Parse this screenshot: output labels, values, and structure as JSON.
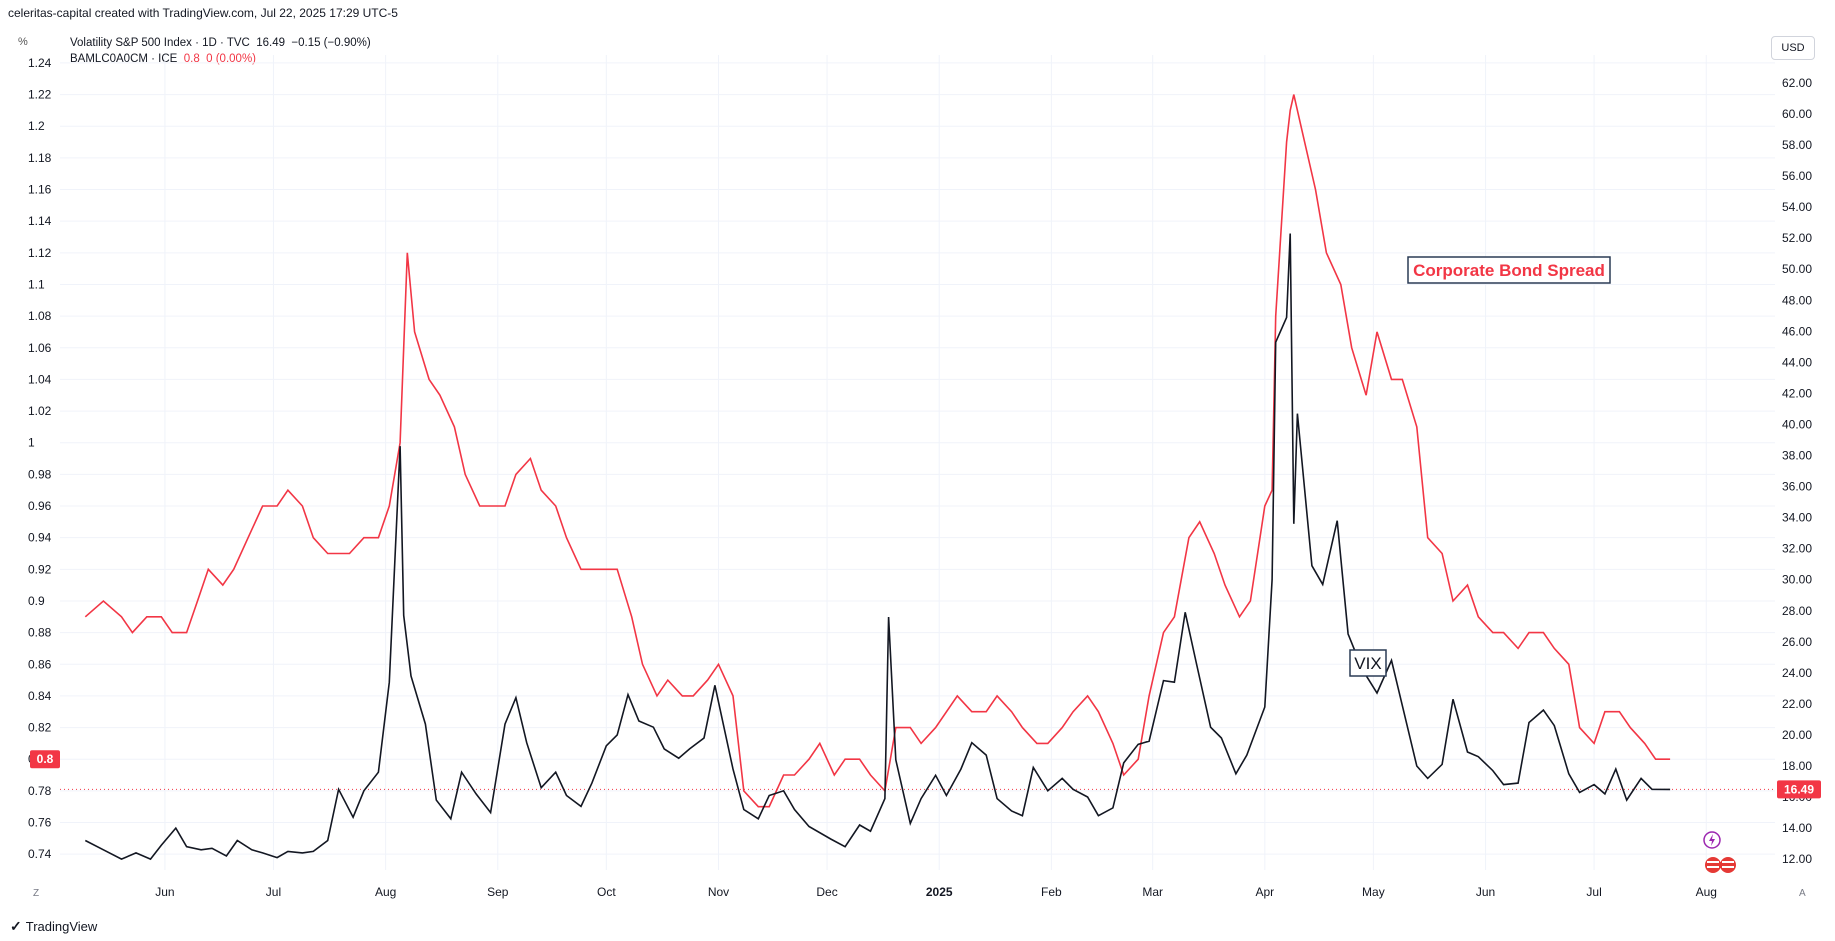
{
  "header": {
    "attribution": "celeritas-capital created with TradingView.com, Jul 22, 2025 17:29 UTC-5"
  },
  "toolbar": {
    "scale_label": "%",
    "currency_label": "USD"
  },
  "legend": {
    "vix": {
      "name": "Volatility S&P 500 Index · 1D · TVC",
      "value": "16.49",
      "change": "−0.15 (−0.90%)"
    },
    "bam": {
      "name": "BAMLC0A0CM · ICE",
      "value": "0.8",
      "change": "0 (0.00%)"
    }
  },
  "footer": {
    "brand": "TradingView",
    "left_corner": "Z",
    "right_corner": "A"
  },
  "colors": {
    "vix": "#131722",
    "spread": "#f23645",
    "grid": "#f0f3fa",
    "annotation_border": "#2a3b55"
  },
  "icons": [
    "tradingview-logo-icon",
    "lightning-icon",
    "us-flag-icon"
  ],
  "chart_data": {
    "type": "line",
    "x_ticks": [
      "Jun",
      "Jul",
      "Aug",
      "Sep",
      "Oct",
      "Nov",
      "Dec",
      "2025",
      "Feb",
      "Mar",
      "Apr",
      "May",
      "Jun",
      "Jul",
      "Aug"
    ],
    "left_axis": {
      "range": [
        0.73,
        1.245
      ],
      "ticks": [
        "0.74",
        "0.76",
        "0.78",
        "0.8",
        "0.82",
        "0.84",
        "0.86",
        "0.88",
        "0.9",
        "0.92",
        "0.94",
        "0.96",
        "0.98",
        "1",
        "1.02",
        "1.04",
        "1.06",
        "1.08",
        "1.1",
        "1.12",
        "1.14",
        "1.16",
        "1.18",
        "1.2",
        "1.22",
        "1.24"
      ],
      "last_value_label": "0.8"
    },
    "right_axis": {
      "range": [
        11.3,
        63.8
      ],
      "ticks": [
        "12.00",
        "14.00",
        "16.00",
        "18.00",
        "20.00",
        "22.00",
        "24.00",
        "26.00",
        "28.00",
        "30.00",
        "32.00",
        "34.00",
        "36.00",
        "38.00",
        "40.00",
        "42.00",
        "44.00",
        "46.00",
        "48.00",
        "50.00",
        "52.00",
        "54.00",
        "56.00",
        "58.00",
        "60.00",
        "62.00"
      ],
      "last_value_label": "16.49"
    },
    "annotations": [
      "Corporate Bond Spread",
      "VIX"
    ],
    "series": [
      {
        "name": "BAMLC0A0CM",
        "axis": "left",
        "points": [
          [
            "2024-05-10",
            0.89
          ],
          [
            "2024-05-15",
            0.9
          ],
          [
            "2024-05-20",
            0.89
          ],
          [
            "2024-05-23",
            0.88
          ],
          [
            "2024-05-27",
            0.89
          ],
          [
            "2024-05-31",
            0.89
          ],
          [
            "2024-06-03",
            0.88
          ],
          [
            "2024-06-07",
            0.88
          ],
          [
            "2024-06-10",
            0.9
          ],
          [
            "2024-06-13",
            0.92
          ],
          [
            "2024-06-17",
            0.91
          ],
          [
            "2024-06-20",
            0.92
          ],
          [
            "2024-06-24",
            0.94
          ],
          [
            "2024-06-28",
            0.96
          ],
          [
            "2024-07-02",
            0.96
          ],
          [
            "2024-07-05",
            0.97
          ],
          [
            "2024-07-09",
            0.96
          ],
          [
            "2024-07-12",
            0.94
          ],
          [
            "2024-07-16",
            0.93
          ],
          [
            "2024-07-22",
            0.93
          ],
          [
            "2024-07-26",
            0.94
          ],
          [
            "2024-07-30",
            0.94
          ],
          [
            "2024-08-02",
            0.96
          ],
          [
            "2024-08-05",
            1.0
          ],
          [
            "2024-08-07",
            1.12
          ],
          [
            "2024-08-09",
            1.07
          ],
          [
            "2024-08-13",
            1.04
          ],
          [
            "2024-08-16",
            1.03
          ],
          [
            "2024-08-20",
            1.01
          ],
          [
            "2024-08-23",
            0.98
          ],
          [
            "2024-08-27",
            0.96
          ],
          [
            "2024-08-30",
            0.96
          ],
          [
            "2024-09-03",
            0.96
          ],
          [
            "2024-09-06",
            0.98
          ],
          [
            "2024-09-10",
            0.99
          ],
          [
            "2024-09-13",
            0.97
          ],
          [
            "2024-09-17",
            0.96
          ],
          [
            "2024-09-20",
            0.94
          ],
          [
            "2024-09-24",
            0.92
          ],
          [
            "2024-09-30",
            0.92
          ],
          [
            "2024-10-04",
            0.92
          ],
          [
            "2024-10-08",
            0.89
          ],
          [
            "2024-10-11",
            0.86
          ],
          [
            "2024-10-15",
            0.84
          ],
          [
            "2024-10-18",
            0.85
          ],
          [
            "2024-10-22",
            0.84
          ],
          [
            "2024-10-25",
            0.84
          ],
          [
            "2024-10-29",
            0.85
          ],
          [
            "2024-11-01",
            0.86
          ],
          [
            "2024-11-05",
            0.84
          ],
          [
            "2024-11-08",
            0.78
          ],
          [
            "2024-11-12",
            0.77
          ],
          [
            "2024-11-15",
            0.77
          ],
          [
            "2024-11-19",
            0.79
          ],
          [
            "2024-11-22",
            0.79
          ],
          [
            "2024-11-26",
            0.8
          ],
          [
            "2024-11-29",
            0.81
          ],
          [
            "2024-12-03",
            0.79
          ],
          [
            "2024-12-06",
            0.8
          ],
          [
            "2024-12-10",
            0.8
          ],
          [
            "2024-12-13",
            0.79
          ],
          [
            "2024-12-17",
            0.78
          ],
          [
            "2024-12-20",
            0.82
          ],
          [
            "2024-12-24",
            0.82
          ],
          [
            "2024-12-27",
            0.81
          ],
          [
            "2024-12-31",
            0.82
          ],
          [
            "2025-01-06",
            0.84
          ],
          [
            "2025-01-10",
            0.83
          ],
          [
            "2025-01-14",
            0.83
          ],
          [
            "2025-01-17",
            0.84
          ],
          [
            "2025-01-21",
            0.83
          ],
          [
            "2025-01-24",
            0.82
          ],
          [
            "2025-01-28",
            0.81
          ],
          [
            "2025-01-31",
            0.81
          ],
          [
            "2025-02-04",
            0.82
          ],
          [
            "2025-02-07",
            0.83
          ],
          [
            "2025-02-11",
            0.84
          ],
          [
            "2025-02-14",
            0.83
          ],
          [
            "2025-02-18",
            0.81
          ],
          [
            "2025-02-21",
            0.79
          ],
          [
            "2025-02-25",
            0.8
          ],
          [
            "2025-02-28",
            0.84
          ],
          [
            "2025-03-04",
            0.88
          ],
          [
            "2025-03-07",
            0.89
          ],
          [
            "2025-03-11",
            0.94
          ],
          [
            "2025-03-14",
            0.95
          ],
          [
            "2025-03-18",
            0.93
          ],
          [
            "2025-03-21",
            0.91
          ],
          [
            "2025-03-25",
            0.89
          ],
          [
            "2025-03-28",
            0.9
          ],
          [
            "2025-04-01",
            0.96
          ],
          [
            "2025-04-03",
            0.97
          ],
          [
            "2025-04-04",
            1.08
          ],
          [
            "2025-04-07",
            1.19
          ],
          [
            "2025-04-08",
            1.21
          ],
          [
            "2025-04-09",
            1.22
          ],
          [
            "2025-04-11",
            1.2
          ],
          [
            "2025-04-15",
            1.16
          ],
          [
            "2025-04-18",
            1.12
          ],
          [
            "2025-04-22",
            1.1
          ],
          [
            "2025-04-25",
            1.06
          ],
          [
            "2025-04-29",
            1.03
          ],
          [
            "2025-05-02",
            1.07
          ],
          [
            "2025-05-06",
            1.04
          ],
          [
            "2025-05-09",
            1.04
          ],
          [
            "2025-05-13",
            1.01
          ],
          [
            "2025-05-16",
            0.94
          ],
          [
            "2025-05-20",
            0.93
          ],
          [
            "2025-05-23",
            0.9
          ],
          [
            "2025-05-27",
            0.91
          ],
          [
            "2025-05-30",
            0.89
          ],
          [
            "2025-06-03",
            0.88
          ],
          [
            "2025-06-06",
            0.88
          ],
          [
            "2025-06-10",
            0.87
          ],
          [
            "2025-06-13",
            0.88
          ],
          [
            "2025-06-17",
            0.88
          ],
          [
            "2025-06-20",
            0.87
          ],
          [
            "2025-06-24",
            0.86
          ],
          [
            "2025-06-27",
            0.82
          ],
          [
            "2025-07-01",
            0.81
          ],
          [
            "2025-07-04",
            0.83
          ],
          [
            "2025-07-08",
            0.83
          ],
          [
            "2025-07-11",
            0.82
          ],
          [
            "2025-07-15",
            0.81
          ],
          [
            "2025-07-18",
            0.8
          ],
          [
            "2025-07-22",
            0.8
          ]
        ]
      },
      {
        "name": "Volatility S&P 500 Index",
        "axis": "right",
        "points": [
          [
            "2024-05-10",
            13.2
          ],
          [
            "2024-05-15",
            12.6
          ],
          [
            "2024-05-20",
            12.0
          ],
          [
            "2024-05-24",
            12.4
          ],
          [
            "2024-05-28",
            12.0
          ],
          [
            "2024-05-31",
            12.9
          ],
          [
            "2024-06-04",
            14.0
          ],
          [
            "2024-06-07",
            12.8
          ],
          [
            "2024-06-11",
            12.6
          ],
          [
            "2024-06-14",
            12.7
          ],
          [
            "2024-06-18",
            12.2
          ],
          [
            "2024-06-21",
            13.2
          ],
          [
            "2024-06-25",
            12.6
          ],
          [
            "2024-06-28",
            12.4
          ],
          [
            "2024-07-02",
            12.1
          ],
          [
            "2024-07-05",
            12.5
          ],
          [
            "2024-07-09",
            12.4
          ],
          [
            "2024-07-12",
            12.5
          ],
          [
            "2024-07-16",
            13.2
          ],
          [
            "2024-07-19",
            16.5
          ],
          [
            "2024-07-23",
            14.7
          ],
          [
            "2024-07-26",
            16.4
          ],
          [
            "2024-07-30",
            17.6
          ],
          [
            "2024-08-02",
            23.4
          ],
          [
            "2024-08-05",
            38.6
          ],
          [
            "2024-08-06",
            27.7
          ],
          [
            "2024-08-08",
            23.8
          ],
          [
            "2024-08-12",
            20.7
          ],
          [
            "2024-08-15",
            15.8
          ],
          [
            "2024-08-19",
            14.6
          ],
          [
            "2024-08-22",
            17.6
          ],
          [
            "2024-08-26",
            16.2
          ],
          [
            "2024-08-30",
            15.0
          ],
          [
            "2024-09-03",
            20.7
          ],
          [
            "2024-09-06",
            22.4
          ],
          [
            "2024-09-09",
            19.5
          ],
          [
            "2024-09-13",
            16.6
          ],
          [
            "2024-09-17",
            17.6
          ],
          [
            "2024-09-20",
            16.1
          ],
          [
            "2024-09-24",
            15.4
          ],
          [
            "2024-09-27",
            16.9
          ],
          [
            "2024-10-01",
            19.3
          ],
          [
            "2024-10-04",
            20.0
          ],
          [
            "2024-10-07",
            22.6
          ],
          [
            "2024-10-10",
            20.9
          ],
          [
            "2024-10-14",
            20.5
          ],
          [
            "2024-10-17",
            19.1
          ],
          [
            "2024-10-21",
            18.5
          ],
          [
            "2024-10-24",
            19.1
          ],
          [
            "2024-10-28",
            19.8
          ],
          [
            "2024-10-31",
            23.2
          ],
          [
            "2024-11-05",
            17.8
          ],
          [
            "2024-11-08",
            15.2
          ],
          [
            "2024-11-12",
            14.6
          ],
          [
            "2024-11-15",
            16.1
          ],
          [
            "2024-11-19",
            16.4
          ],
          [
            "2024-11-22",
            15.2
          ],
          [
            "2024-11-26",
            14.1
          ],
          [
            "2024-12-02",
            13.3
          ],
          [
            "2024-12-06",
            12.8
          ],
          [
            "2024-12-10",
            14.2
          ],
          [
            "2024-12-13",
            13.8
          ],
          [
            "2024-12-17",
            15.9
          ],
          [
            "2024-12-18",
            27.6
          ],
          [
            "2024-12-20",
            18.4
          ],
          [
            "2024-12-24",
            14.3
          ],
          [
            "2024-12-27",
            15.9
          ],
          [
            "2024-12-31",
            17.4
          ],
          [
            "2025-01-03",
            16.1
          ],
          [
            "2025-01-07",
            17.8
          ],
          [
            "2025-01-10",
            19.5
          ],
          [
            "2025-01-14",
            18.7
          ],
          [
            "2025-01-17",
            15.9
          ],
          [
            "2025-01-21",
            15.1
          ],
          [
            "2025-01-24",
            14.8
          ],
          [
            "2025-01-27",
            17.9
          ],
          [
            "2025-01-31",
            16.4
          ],
          [
            "2025-02-04",
            17.2
          ],
          [
            "2025-02-07",
            16.5
          ],
          [
            "2025-02-11",
            16.0
          ],
          [
            "2025-02-14",
            14.8
          ],
          [
            "2025-02-18",
            15.3
          ],
          [
            "2025-02-21",
            18.2
          ],
          [
            "2025-02-25",
            19.4
          ],
          [
            "2025-02-28",
            19.6
          ],
          [
            "2025-03-04",
            23.5
          ],
          [
            "2025-03-07",
            23.4
          ],
          [
            "2025-03-10",
            27.9
          ],
          [
            "2025-03-13",
            24.7
          ],
          [
            "2025-03-17",
            20.5
          ],
          [
            "2025-03-20",
            19.8
          ],
          [
            "2025-03-24",
            17.5
          ],
          [
            "2025-03-27",
            18.7
          ],
          [
            "2025-04-01",
            21.8
          ],
          [
            "2025-04-03",
            30.0
          ],
          [
            "2025-04-04",
            45.3
          ],
          [
            "2025-04-07",
            46.9
          ],
          [
            "2025-04-08",
            52.3
          ],
          [
            "2025-04-09",
            33.6
          ],
          [
            "2025-04-10",
            40.7
          ],
          [
            "2025-04-14",
            30.9
          ],
          [
            "2025-04-17",
            29.7
          ],
          [
            "2025-04-21",
            33.8
          ],
          [
            "2025-04-24",
            26.5
          ],
          [
            "2025-04-28",
            24.2
          ],
          [
            "2025-05-02",
            22.7
          ],
          [
            "2025-05-06",
            24.8
          ],
          [
            "2025-05-09",
            21.9
          ],
          [
            "2025-05-13",
            18.0
          ],
          [
            "2025-05-16",
            17.2
          ],
          [
            "2025-05-20",
            18.1
          ],
          [
            "2025-05-23",
            22.3
          ],
          [
            "2025-05-27",
            18.9
          ],
          [
            "2025-05-30",
            18.6
          ],
          [
            "2025-06-03",
            17.7
          ],
          [
            "2025-06-06",
            16.8
          ],
          [
            "2025-06-10",
            16.9
          ],
          [
            "2025-06-13",
            20.8
          ],
          [
            "2025-06-17",
            21.6
          ],
          [
            "2025-06-20",
            20.6
          ],
          [
            "2025-06-24",
            17.5
          ],
          [
            "2025-06-27",
            16.3
          ],
          [
            "2025-07-01",
            16.8
          ],
          [
            "2025-07-04",
            16.2
          ],
          [
            "2025-07-07",
            17.8
          ],
          [
            "2025-07-10",
            15.8
          ],
          [
            "2025-07-14",
            17.2
          ],
          [
            "2025-07-17",
            16.5
          ],
          [
            "2025-07-22",
            16.49
          ]
        ]
      }
    ]
  }
}
